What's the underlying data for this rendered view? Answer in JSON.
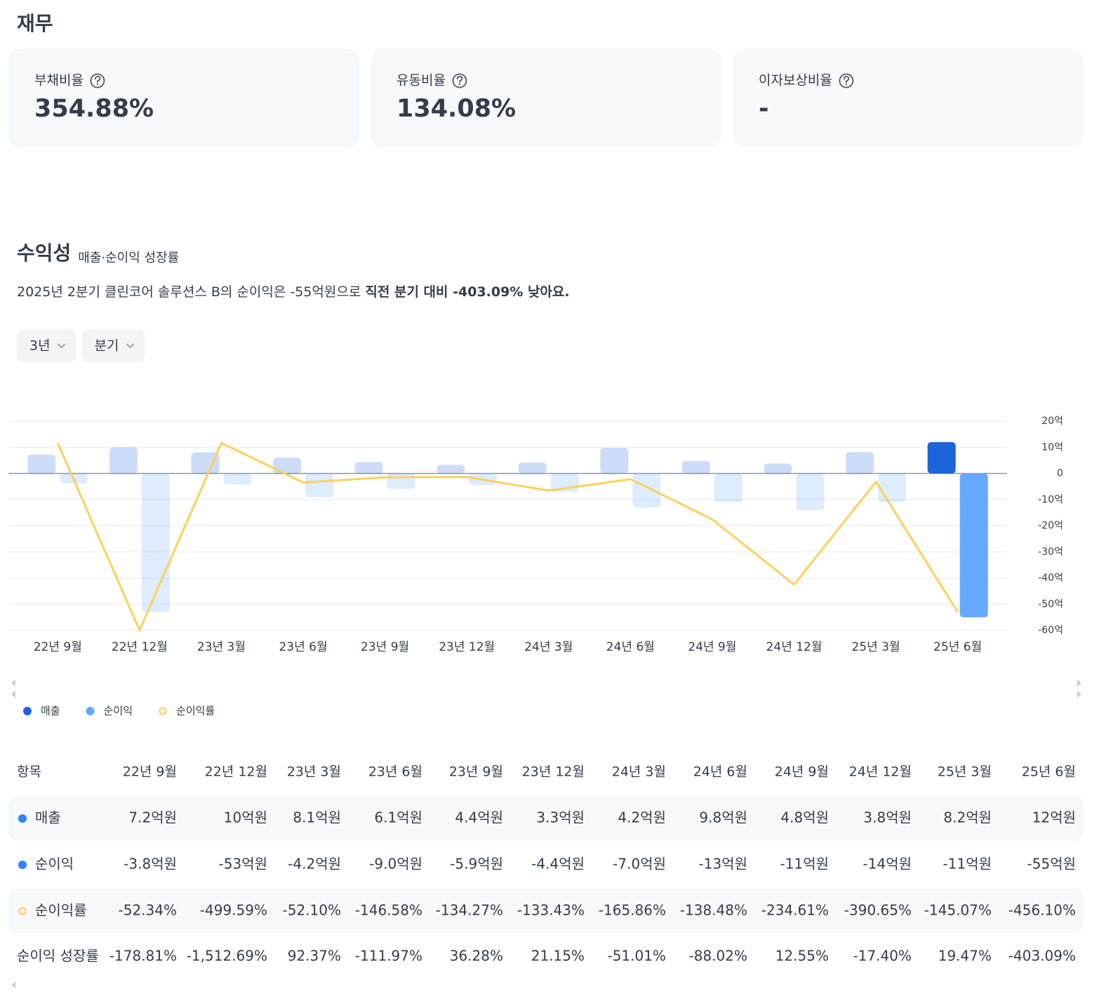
{
  "header": {
    "title": "재무"
  },
  "cards": [
    {
      "label": "부채비율",
      "value": "354.88%"
    },
    {
      "label": "유동비율",
      "value": "134.08%"
    },
    {
      "label": "이자보상비율",
      "value": "-"
    }
  ],
  "section": {
    "title": "수익성",
    "subtitle": "매출·순이익 성장률",
    "summary": "2025년 2분기 클린코어 솔루션스 B의 순이익은 -55억원으로 ",
    "summary_bold": "직전 분기 대비 -403.09% 낮아요."
  },
  "filters": [
    "3년",
    "분기"
  ],
  "chart_data": {
    "type": "bar",
    "categories": [
      "22년 9월",
      "22년 12월",
      "23년 3월",
      "23년 6월",
      "23년 9월",
      "23년 12월",
      "24년 3월",
      "24년 6월",
      "24년 9월",
      "24년 12월",
      "25년 3월",
      "25년 6월"
    ],
    "series": [
      {
        "name": "매출",
        "color": "#1b64da",
        "values": [
          7.2,
          10,
          8.1,
          6.1,
          4.4,
          3.3,
          4.2,
          9.8,
          4.8,
          3.8,
          8.2,
          12
        ]
      },
      {
        "name": "순이익",
        "color": "#64a8ff",
        "values": [
          -3.8,
          -53,
          -4.2,
          -9.0,
          -5.9,
          -4.4,
          -7.0,
          -13,
          -11,
          -14,
          -11,
          -55
        ]
      },
      {
        "name": "순이익률",
        "color": "#fcd15b",
        "type": "line",
        "axis": "y2",
        "values": [
          -52.34,
          -499.59,
          -52.1,
          -146.58,
          -134.27,
          -133.43,
          -165.86,
          -138.48,
          -234.61,
          -390.65,
          -145.07,
          -456.1
        ]
      }
    ],
    "ylim": [
      -60,
      20
    ],
    "yticks": [
      {
        "value": 20,
        "label": "20억"
      },
      {
        "value": 10,
        "label": "10억"
      },
      0,
      {
        "value": -10,
        "label": "-10억"
      },
      {
        "value": -20,
        "label": "-20억"
      },
      {
        "value": -30,
        "label": "-30억"
      },
      {
        "value": -40,
        "label": "-40억"
      },
      {
        "value": -50,
        "label": "-50억"
      },
      {
        "value": -60,
        "label": "-60억"
      }
    ],
    "y2lim": [
      -500,
      0
    ],
    "grid": true,
    "legend": "bottom-left"
  },
  "table": {
    "header": "항목",
    "rows": [
      {
        "cells": [
          "7.2억원",
          "10억원",
          "8.1억원",
          "6.1억원",
          "4.4억원",
          "3.3억원",
          "4.2억원",
          "9.8억원",
          "4.8억원",
          "3.8억원",
          "8.2억원",
          "12억원"
        ]
      },
      {
        "cells": [
          "-3.8억원",
          "-53억원",
          "-4.2억원",
          "-9.0억원",
          "-5.9억원",
          "-4.4억원",
          "-7.0억원",
          "-13억원",
          "-11억원",
          "-14억원",
          "-11억원",
          "-55억원"
        ]
      },
      {
        "cells": [
          "-52.34%",
          "-499.59%",
          "-52.10%",
          "-146.58%",
          "-134.27%",
          "-133.43%",
          "-165.86%",
          "-138.48%",
          "-234.61%",
          "-390.65%",
          "-145.07%",
          "-456.10%"
        ]
      }
    ],
    "growth": {
      "label": "순이익 성장률",
      "cells": [
        "-178.81%",
        "-1,512.69%",
        "92.37%",
        "-111.97%",
        "36.28%",
        "21.15%",
        "-51.01%",
        "-88.02%",
        "12.55%",
        "-17.40%",
        "19.47%",
        "-403.09%"
      ]
    }
  }
}
